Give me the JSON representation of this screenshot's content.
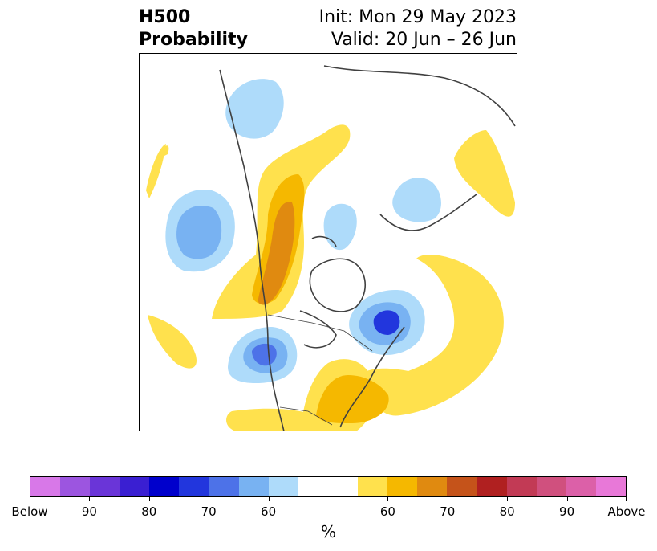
{
  "title": {
    "left_line1": "H500",
    "left_line2": "Probability",
    "right_line1": "Init: Mon 29 May 2023",
    "right_line2": "Valid: 20 Jun – 26 Jun"
  },
  "colorbar": {
    "colors": [
      "#d878e8",
      "#9c55e0",
      "#6a35d8",
      "#3a1fd2",
      "#0000cc",
      "#2236dd",
      "#4d72e8",
      "#78b2f2",
      "#aedbfa",
      "#ffffff",
      "#ffffff",
      "#ffe14d",
      "#f5b800",
      "#e08a10",
      "#c5531a",
      "#b02020",
      "#c23a55",
      "#d0507e",
      "#dc60a8",
      "#e878d8"
    ],
    "ticks": [
      "Below",
      "90",
      "80",
      "70",
      "60",
      "60",
      "70",
      "80",
      "90",
      "Above"
    ],
    "unit": "%"
  },
  "colors": {
    "below_light": "#aedbfa",
    "below_mid": "#78b2f2",
    "below_strong": "#4d72e8",
    "below_deep": "#2236dd",
    "above_light": "#ffe14d",
    "above_mid": "#f5b800",
    "above_strong": "#e08a10",
    "coastline": "#404040"
  }
}
